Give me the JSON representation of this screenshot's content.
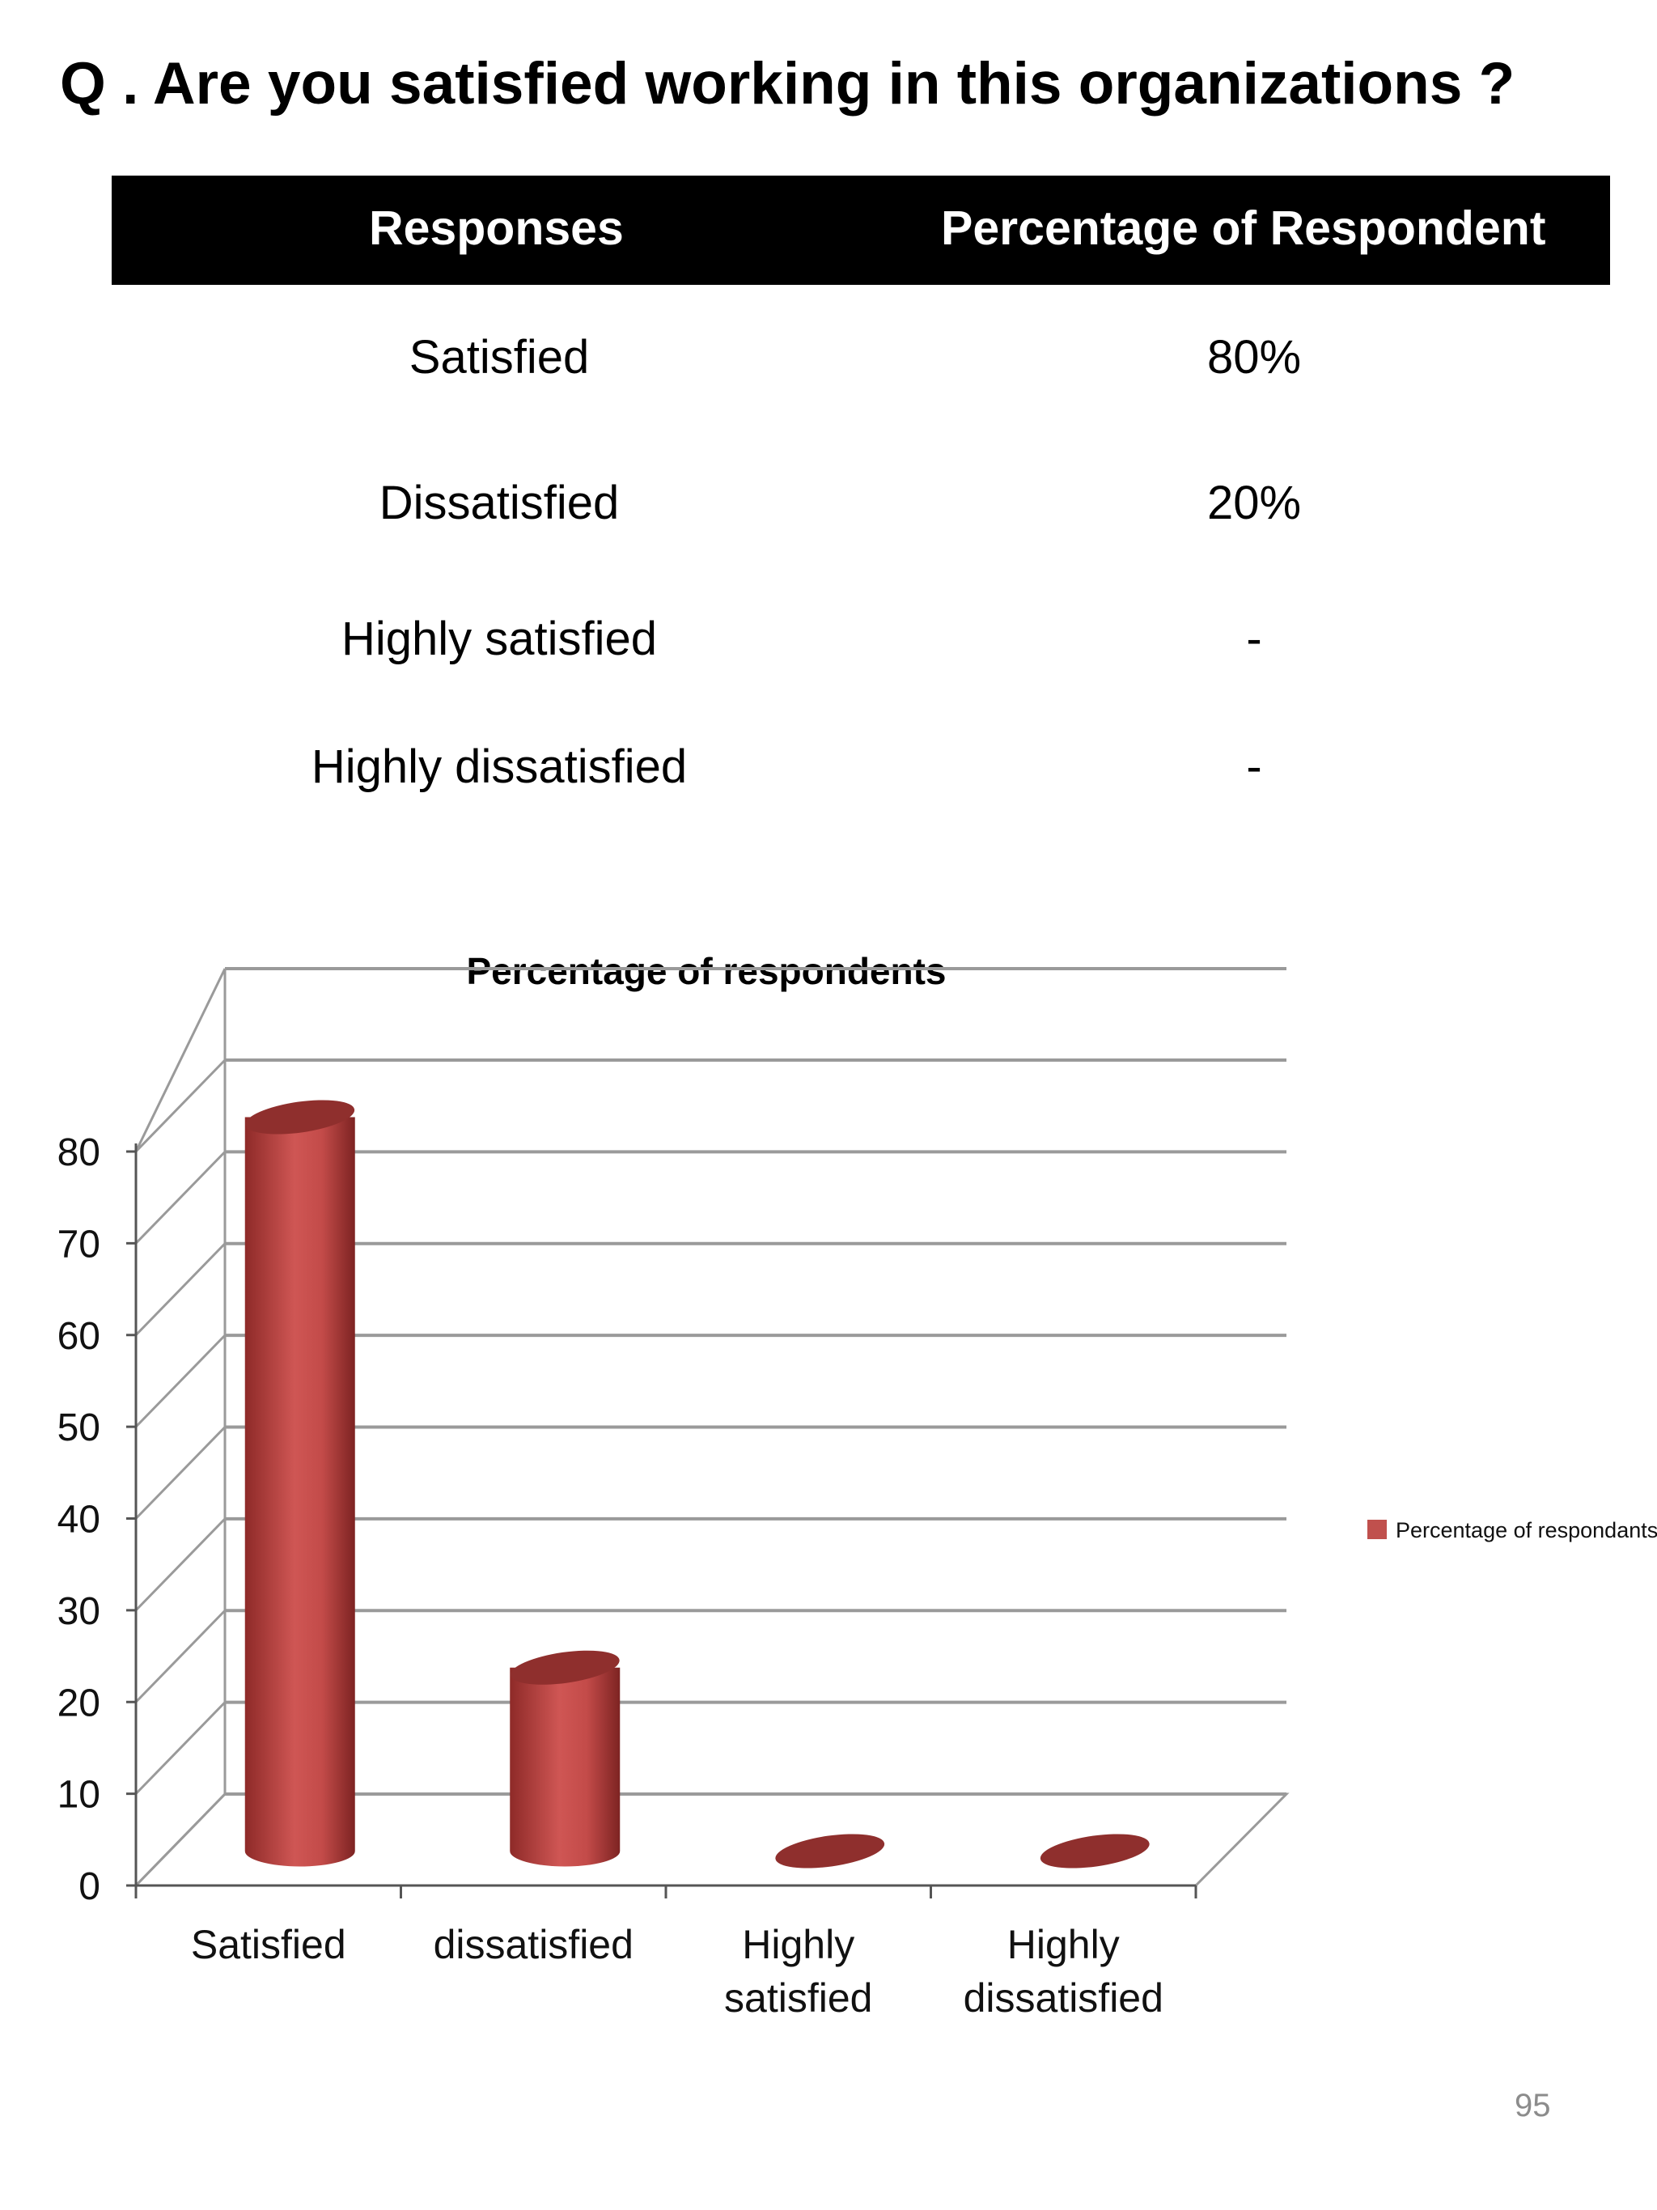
{
  "question": "Q . Are you satisfied working in this organizations ?",
  "table": {
    "headers": [
      "Responses",
      "Percentage of Respondent"
    ],
    "rows": [
      {
        "response": "Satisfied",
        "percentage": "80%"
      },
      {
        "response": "Dissatisfied",
        "percentage": "20%"
      },
      {
        "response": "Highly satisfied",
        "percentage": "-"
      },
      {
        "response": "Highly dissatisfied",
        "percentage": "-"
      }
    ]
  },
  "chart_data": {
    "type": "bar",
    "style": "3d-cylinder",
    "title": "Percentage of respondents",
    "categories": [
      "Satisfied",
      "dissatisfied",
      "Highly satisfied",
      "Highly dissatisfied"
    ],
    "category_labels": [
      [
        "Satisfied"
      ],
      [
        "dissatisfied"
      ],
      [
        "Highly",
        "satisfied"
      ],
      [
        "Highly",
        "dissatisfied"
      ]
    ],
    "series": [
      {
        "name": "Percentage of respondants",
        "values": [
          80,
          20,
          0,
          0
        ],
        "color": "#c0504d"
      }
    ],
    "ylim": [
      0,
      80
    ],
    "yticks": [
      0,
      10,
      20,
      30,
      40,
      50,
      60,
      70,
      80
    ],
    "xlabel": "",
    "ylabel": "",
    "grid": true,
    "legend": "right"
  },
  "page_number": "95"
}
